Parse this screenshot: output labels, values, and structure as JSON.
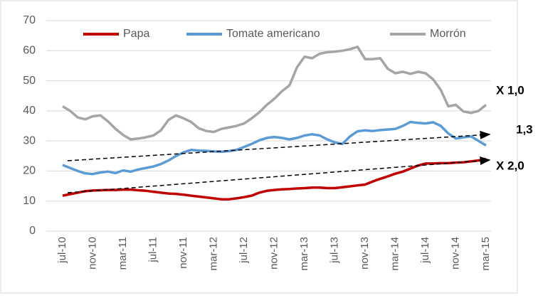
{
  "chart_data": {
    "type": "line",
    "categories": [
      "jul-10",
      null,
      null,
      null,
      "nov-10",
      null,
      null,
      null,
      "mar-11",
      null,
      null,
      null,
      "jul-11",
      null,
      null,
      null,
      "nov-11",
      null,
      null,
      null,
      "mar-12",
      null,
      null,
      null,
      "jul-12",
      null,
      null,
      null,
      "nov-12",
      null,
      null,
      null,
      "mar-13",
      null,
      null,
      null,
      "jul-13",
      null,
      null,
      null,
      "nov-13",
      null,
      null,
      null,
      "mar-14",
      null,
      null,
      null,
      "jul-14",
      null,
      null,
      null,
      "nov-14",
      null,
      null,
      null,
      "mar-15"
    ],
    "series": [
      {
        "name": "Papa",
        "color": "#c00000",
        "values": [
          11.8,
          12.3,
          12.8,
          13.3,
          13.5,
          13.6,
          13.7,
          13.7,
          13.8,
          13.8,
          13.6,
          13.4,
          13.1,
          12.8,
          12.5,
          12.4,
          12.1,
          11.8,
          11.5,
          11.2,
          10.9,
          10.6,
          10.6,
          10.9,
          11.3,
          11.8,
          12.8,
          13.4,
          13.7,
          13.9,
          14.0,
          14.2,
          14.3,
          14.5,
          14.5,
          14.3,
          14.3,
          14.6,
          14.9,
          15.2,
          15.5,
          16.5,
          17.4,
          18.2,
          19.1,
          19.8,
          20.8,
          21.8,
          22.5,
          22.5,
          22.6,
          22.6,
          22.8,
          22.9,
          23.2,
          23.5,
          24.0
        ]
      },
      {
        "name": "Tomate americano",
        "color": "#5b9bd5",
        "values": [
          22.0,
          21.0,
          20.0,
          19.2,
          19.0,
          19.5,
          19.8,
          19.3,
          20.2,
          19.8,
          20.5,
          21.0,
          21.5,
          22.3,
          23.5,
          25.0,
          26.2,
          27.0,
          26.8,
          26.7,
          26.5,
          26.4,
          26.6,
          27.0,
          28.0,
          29.0,
          30.2,
          31.0,
          31.3,
          31.0,
          30.5,
          31.0,
          31.8,
          32.2,
          31.8,
          30.5,
          29.5,
          29.0,
          31.5,
          33.2,
          33.5,
          33.3,
          33.6,
          33.8,
          34.0,
          35.0,
          36.3,
          36.0,
          35.8,
          36.2,
          35.0,
          32.5,
          30.8,
          31.2,
          31.5,
          30.0,
          28.5
        ]
      },
      {
        "name": "Morrón",
        "color": "#a5a5a5",
        "values": [
          41.5,
          40.0,
          37.8,
          37.2,
          38.2,
          38.5,
          36.5,
          34.0,
          32.0,
          30.5,
          30.8,
          31.2,
          31.8,
          33.5,
          37.0,
          38.5,
          37.5,
          36.3,
          34.2,
          33.3,
          33.0,
          34.0,
          34.5,
          35.0,
          35.8,
          37.5,
          39.5,
          42.0,
          44.0,
          46.5,
          48.5,
          54.5,
          58.0,
          57.5,
          59.0,
          59.5,
          59.7,
          60.0,
          60.5,
          61.3,
          57.2,
          57.2,
          57.5,
          54.0,
          52.5,
          53.0,
          52.3,
          53.0,
          52.5,
          50.5,
          47.0,
          41.5,
          42.0,
          39.8,
          39.3,
          40.0,
          42.0
        ]
      }
    ],
    "ylim": [
      0,
      70
    ],
    "yticks": [
      0,
      10,
      20,
      30,
      40,
      50,
      60,
      70
    ],
    "grid": true,
    "legend": "top",
    "annotations": [
      "X 1,0",
      "1,3",
      "X 2,0"
    ]
  }
}
